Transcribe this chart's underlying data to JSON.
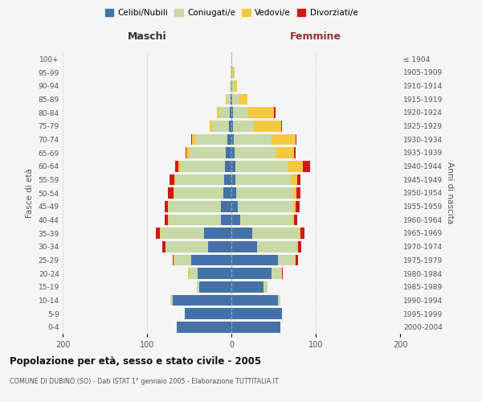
{
  "age_groups": [
    "0-4",
    "5-9",
    "10-14",
    "15-19",
    "20-24",
    "25-29",
    "30-34",
    "35-39",
    "40-44",
    "45-49",
    "50-54",
    "55-59",
    "60-64",
    "65-69",
    "70-74",
    "75-79",
    "80-84",
    "85-89",
    "90-94",
    "95-99",
    "100+"
  ],
  "birth_years": [
    "2000-2004",
    "1995-1999",
    "1990-1994",
    "1985-1989",
    "1980-1984",
    "1975-1979",
    "1970-1974",
    "1965-1969",
    "1960-1964",
    "1955-1959",
    "1950-1954",
    "1945-1949",
    "1940-1944",
    "1935-1939",
    "1930-1934",
    "1925-1929",
    "1920-1924",
    "1915-1919",
    "1910-1914",
    "1905-1909",
    "≤ 1904"
  ],
  "male": {
    "celibi": [
      65,
      55,
      70,
      38,
      40,
      48,
      28,
      32,
      12,
      12,
      10,
      9,
      8,
      7,
      5,
      3,
      2,
      1,
      0,
      0,
      0
    ],
    "coniugati": [
      0,
      0,
      2,
      3,
      10,
      20,
      50,
      52,
      62,
      62,
      58,
      57,
      52,
      43,
      38,
      20,
      12,
      5,
      2,
      1,
      0
    ],
    "vedovi": [
      0,
      0,
      0,
      0,
      1,
      1,
      0,
      1,
      1,
      1,
      1,
      2,
      3,
      3,
      4,
      3,
      3,
      1,
      0,
      0,
      0
    ],
    "divorziati": [
      0,
      0,
      0,
      0,
      0,
      1,
      4,
      5,
      4,
      4,
      6,
      5,
      4,
      1,
      1,
      0,
      0,
      0,
      0,
      0,
      0
    ]
  },
  "female": {
    "nubili": [
      58,
      60,
      55,
      38,
      48,
      55,
      30,
      25,
      10,
      8,
      6,
      5,
      5,
      4,
      3,
      2,
      2,
      1,
      1,
      0,
      0
    ],
    "coniugate": [
      0,
      0,
      3,
      5,
      12,
      20,
      48,
      55,
      62,
      65,
      67,
      65,
      62,
      48,
      45,
      25,
      18,
      8,
      3,
      2,
      0
    ],
    "vedove": [
      0,
      0,
      0,
      0,
      0,
      1,
      1,
      2,
      2,
      3,
      4,
      8,
      18,
      22,
      28,
      32,
      30,
      10,
      3,
      2,
      1
    ],
    "divorziate": [
      0,
      0,
      0,
      0,
      1,
      3,
      4,
      5,
      4,
      5,
      5,
      4,
      8,
      2,
      1,
      1,
      2,
      0,
      0,
      0,
      0
    ]
  },
  "colors": {
    "celibi": "#4472a8",
    "coniugati": "#c8d9a8",
    "vedovi": "#f5c842",
    "divorziati": "#cc1a1a"
  },
  "title": "Popolazione per età, sesso e stato civile - 2005",
  "subtitle": "COMUNE DI DUBINO (SO) - Dati ISTAT 1° gennaio 2005 - Elaborazione TUTTITALIA.IT",
  "xlabel_left": "Maschi",
  "xlabel_right": "Femmine",
  "ylabel_left": "Fasce di età",
  "ylabel_right": "Anni di nascita",
  "xlim": 200,
  "legend_labels": [
    "Celibi/Nubili",
    "Coniugati/e",
    "Vedovi/e",
    "Divorziati/e"
  ],
  "background_color": "#f5f5f5",
  "grid_color": "#cccccc"
}
